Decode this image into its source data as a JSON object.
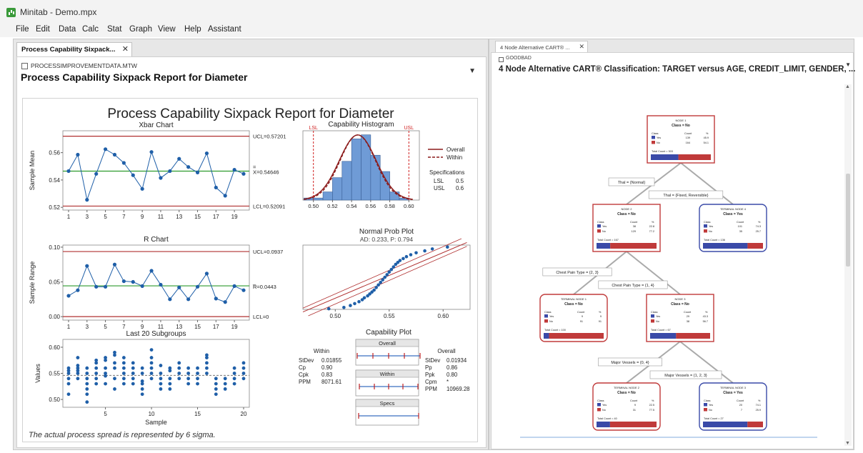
{
  "app": {
    "title": "Minitab - Demo.mpx"
  },
  "menu": [
    "File",
    "Edit",
    "Data",
    "Calc",
    "Stat",
    "Graph",
    "View",
    "Help",
    "Assistant"
  ],
  "left": {
    "tab_label": "Process Capability Sixpack...",
    "close_glyph": "✕",
    "worksheet": "PROCESSIMPROVEMENTDATA.MTW",
    "report_title": "Process Capability Sixpack Report for Diameter",
    "dropdown_glyph": "▼",
    "report": {
      "main_title": "Process Capability Sixpack Report for Diameter",
      "footer": "The actual process spread is represented by 6 sigma.",
      "xbar": {
        "title": "Xbar Chart",
        "ylabel": "Sample Mean",
        "ucl_label": "UCL=0.57201",
        "center_label": "X=0.54646",
        "center_bar": "=",
        "lcl_label": "LCL=0.52091",
        "yticks": [
          "0.56",
          "0.54",
          "0.52"
        ],
        "xticks": [
          "1",
          "3",
          "5",
          "7",
          "9",
          "11",
          "13",
          "15",
          "17",
          "19"
        ]
      },
      "rchart": {
        "title": "R Chart",
        "ylabel": "Sample Range",
        "ucl_label": "UCL=0.0937",
        "center_label": "R=0.0443",
        "center_bar": "_",
        "lcl_label": "LCL=0",
        "yticks": [
          "0.10",
          "0.05",
          "0.00"
        ],
        "xticks": [
          "1",
          "3",
          "5",
          "7",
          "9",
          "11",
          "13",
          "15",
          "17",
          "19"
        ]
      },
      "last20": {
        "title": "Last 20 Subgroups",
        "ylabel": "Values",
        "xlabel": "Sample",
        "yticks": [
          "0.60",
          "0.55",
          "0.50"
        ],
        "xticks": [
          "5",
          "10",
          "15",
          "20"
        ]
      },
      "hist": {
        "title": "Capability Histogram",
        "lsl_tag": "LSL",
        "usl_tag": "USL",
        "xticks": [
          "0.50",
          "0.52",
          "0.54",
          "0.56",
          "0.58",
          "0.60"
        ],
        "legend": [
          "Overall",
          "Within"
        ],
        "spec_title": "Specifications",
        "spec_rows": [
          [
            "LSL",
            "0.5"
          ],
          [
            "USL",
            "0.6"
          ]
        ]
      },
      "probplot": {
        "title": "Normal Prob Plot",
        "subtitle": "AD: 0.233, P: 0.794",
        "xticks": [
          "0.50",
          "0.55",
          "0.60"
        ]
      },
      "capplot": {
        "title": "Capability Plot",
        "bars": [
          "Overall",
          "Within",
          "Specs"
        ],
        "within_title": "Within",
        "within_rows": [
          [
            "StDev",
            "0.01855"
          ],
          [
            "Cp",
            "0.90"
          ],
          [
            "Cpk",
            "0.83"
          ],
          [
            "PPM",
            "8071.61"
          ]
        ],
        "overall_title": "Overall",
        "overall_rows": [
          [
            "StDev",
            "0.01934"
          ],
          [
            "Pp",
            "0.86"
          ],
          [
            "Ppk",
            "0.80"
          ],
          [
            "Cpm",
            "*"
          ],
          [
            "PPM",
            "10969.28"
          ]
        ]
      }
    }
  },
  "right": {
    "tab_label": "4 Node Alternative CART® ...",
    "close_glyph": "✕",
    "worksheet": "GOODBAD",
    "report_title": "4 Node Alternative CART® Classification: TARGET versus AGE, CREDIT_LIMIT, GENDER, ...",
    "dropdown_glyph": "▼",
    "tree": {
      "nodes": [
        {
          "id": "n1",
          "title": "NODE 1",
          "cls": "Class = No",
          "yes": [
            "Yes",
            "139",
            "45.9"
          ],
          "no": [
            "No",
            "164",
            "54.1"
          ],
          "total": "Total Count = 303",
          "terminal": false
        },
        {
          "id": "n2",
          "title": "NODE 2",
          "cls": "Class = No",
          "yes": [
            "Yes",
            "38",
            "22.8"
          ],
          "no": [
            "No",
            "129",
            "77.2"
          ],
          "total": "Total Count = 167",
          "terminal": false
        },
        {
          "id": "t4",
          "title": "TERMINAL NODE 4",
          "cls": "Class = Yes",
          "yes": [
            "Yes",
            "101",
            "74.3"
          ],
          "no": [
            "No",
            "35",
            "25.7"
          ],
          "total": "Total Count = 136",
          "terminal": true
        },
        {
          "id": "t1",
          "title": "TERMINAL NODE 1",
          "cls": "Class = No",
          "yes": [
            "Yes",
            "9",
            "9"
          ],
          "no": [
            "No",
            "91",
            "91"
          ],
          "total": "Total Count = 100",
          "terminal": true
        },
        {
          "id": "n3",
          "title": "NODE 3",
          "cls": "Class = No",
          "yes": [
            "Yes",
            "29",
            "43.3"
          ],
          "no": [
            "No",
            "38",
            "56.7"
          ],
          "total": "Total Count = 67",
          "terminal": false
        },
        {
          "id": "t2",
          "title": "TERMINAL NODE 2",
          "cls": "Class = No",
          "yes": [
            "Yes",
            "9",
            "22.5"
          ],
          "no": [
            "No",
            "31",
            "77.5"
          ],
          "total": "Total Count = 40",
          "terminal": true
        },
        {
          "id": "t3",
          "title": "TERMINAL NODE 3",
          "cls": "Class = Yes",
          "yes": [
            "Yes",
            "20",
            "74.1"
          ],
          "no": [
            "No",
            "7",
            "25.9"
          ],
          "total": "Total Count = 27",
          "terminal": true
        }
      ],
      "header": [
        "Class",
        "Count",
        "%"
      ],
      "splits": [
        "Thal = {Normal}",
        "Thal = {Fixed, Reversible}",
        "Chest Pain Type = {2, 3}",
        "Chest Pain Type = {1, 4}",
        "Major Vessels = {0, 4}",
        "Major Vessels = {1, 2, 3}"
      ]
    }
  },
  "chart_data": [
    {
      "type": "line",
      "title": "Xbar Chart",
      "ylabel": "Sample Mean",
      "x": [
        1,
        2,
        3,
        4,
        5,
        6,
        7,
        8,
        9,
        10,
        11,
        12,
        13,
        14,
        15,
        16,
        17,
        18,
        19,
        20
      ],
      "series": [
        {
          "values": [
            0.5465,
            0.5585,
            0.5255,
            0.5445,
            0.5625,
            0.5585,
            0.5525,
            0.5435,
            0.5335,
            0.5605,
            0.5415,
            0.5465,
            0.5555,
            0.5495,
            0.5455,
            0.5595,
            0.5345,
            0.5285,
            0.5475,
            0.5445
          ]
        }
      ],
      "ucl": 0.57201,
      "center": 0.54646,
      "lcl": 0.52091,
      "ylim": [
        0.518,
        0.576
      ]
    },
    {
      "type": "line",
      "title": "R Chart",
      "ylabel": "Sample Range",
      "x": [
        1,
        2,
        3,
        4,
        5,
        6,
        7,
        8,
        9,
        10,
        11,
        12,
        13,
        14,
        15,
        16,
        17,
        18,
        19,
        20
      ],
      "series": [
        {
          "values": [
            0.03,
            0.038,
            0.073,
            0.043,
            0.043,
            0.075,
            0.051,
            0.05,
            0.044,
            0.066,
            0.046,
            0.025,
            0.042,
            0.025,
            0.043,
            0.062,
            0.026,
            0.021,
            0.044,
            0.038
          ]
        }
      ],
      "ucl": 0.0937,
      "center": 0.0443,
      "lcl": 0,
      "ylim": [
        -0.005,
        0.103
      ]
    },
    {
      "type": "scatter",
      "title": "Last 20 Subgroups",
      "xlabel": "Sample",
      "ylabel": "Values",
      "center": 0.546,
      "ylim": [
        0.485,
        0.615
      ],
      "points": [
        [
          1,
          0.51
        ],
        [
          1,
          0.53
        ],
        [
          1,
          0.54
        ],
        [
          1,
          0.55
        ],
        [
          1,
          0.555
        ],
        [
          1,
          0.56
        ],
        [
          2,
          0.54
        ],
        [
          2,
          0.55
        ],
        [
          2,
          0.555
        ],
        [
          2,
          0.56
        ],
        [
          2,
          0.565
        ],
        [
          2,
          0.58
        ],
        [
          3,
          0.495
        ],
        [
          3,
          0.51
        ],
        [
          3,
          0.52
        ],
        [
          3,
          0.53
        ],
        [
          3,
          0.54
        ],
        [
          3,
          0.55
        ],
        [
          3,
          0.56
        ],
        [
          4,
          0.53
        ],
        [
          4,
          0.54
        ],
        [
          4,
          0.55
        ],
        [
          4,
          0.56
        ],
        [
          4,
          0.57
        ],
        [
          4,
          0.575
        ],
        [
          5,
          0.53
        ],
        [
          5,
          0.545
        ],
        [
          5,
          0.55
        ],
        [
          5,
          0.56
        ],
        [
          5,
          0.575
        ],
        [
          5,
          0.58
        ],
        [
          6,
          0.52
        ],
        [
          6,
          0.54
        ],
        [
          6,
          0.56
        ],
        [
          6,
          0.57
        ],
        [
          6,
          0.585
        ],
        [
          6,
          0.59
        ],
        [
          7,
          0.53
        ],
        [
          7,
          0.54
        ],
        [
          7,
          0.55
        ],
        [
          7,
          0.56
        ],
        [
          7,
          0.57
        ],
        [
          7,
          0.58
        ],
        [
          8,
          0.53
        ],
        [
          8,
          0.54
        ],
        [
          8,
          0.55
        ],
        [
          8,
          0.56
        ],
        [
          8,
          0.57
        ],
        [
          9,
          0.51
        ],
        [
          9,
          0.52
        ],
        [
          9,
          0.53
        ],
        [
          9,
          0.535
        ],
        [
          9,
          0.55
        ],
        [
          9,
          0.56
        ],
        [
          10,
          0.54
        ],
        [
          10,
          0.55
        ],
        [
          10,
          0.56
        ],
        [
          10,
          0.57
        ],
        [
          10,
          0.58
        ],
        [
          10,
          0.595
        ],
        [
          11,
          0.52
        ],
        [
          11,
          0.53
        ],
        [
          11,
          0.54
        ],
        [
          11,
          0.55
        ],
        [
          11,
          0.565
        ],
        [
          12,
          0.52
        ],
        [
          12,
          0.53
        ],
        [
          12,
          0.54
        ],
        [
          12,
          0.555
        ],
        [
          12,
          0.56
        ],
        [
          13,
          0.54
        ],
        [
          13,
          0.55
        ],
        [
          13,
          0.56
        ],
        [
          13,
          0.57
        ],
        [
          14,
          0.53
        ],
        [
          14,
          0.54
        ],
        [
          14,
          0.55
        ],
        [
          14,
          0.56
        ],
        [
          15,
          0.53
        ],
        [
          15,
          0.54
        ],
        [
          15,
          0.55
        ],
        [
          15,
          0.56
        ],
        [
          16,
          0.55
        ],
        [
          16,
          0.56
        ],
        [
          16,
          0.57
        ],
        [
          16,
          0.58
        ],
        [
          16,
          0.585
        ],
        [
          17,
          0.51
        ],
        [
          17,
          0.52
        ],
        [
          17,
          0.53
        ],
        [
          17,
          0.54
        ],
        [
          18,
          0.52
        ],
        [
          18,
          0.53
        ],
        [
          18,
          0.54
        ],
        [
          19,
          0.53
        ],
        [
          19,
          0.54
        ],
        [
          19,
          0.55
        ],
        [
          19,
          0.56
        ],
        [
          20,
          0.54
        ],
        [
          20,
          0.55
        ],
        [
          20,
          0.56
        ],
        [
          20,
          0.57
        ]
      ]
    },
    {
      "type": "bar",
      "title": "Capability Histogram",
      "bin_edges": [
        0.49,
        0.5,
        0.51,
        0.52,
        0.53,
        0.54,
        0.55,
        0.56,
        0.57,
        0.58,
        0.59,
        0.6
      ],
      "values": [
        1,
        1,
        4,
        11,
        19,
        30,
        32,
        22,
        14,
        4,
        1
      ],
      "lsl": 0.5,
      "usl": 0.6,
      "xlim": [
        0.489,
        0.611
      ]
    },
    {
      "type": "scatter",
      "title": "Normal Prob Plot",
      "subtitle": "AD: 0.233, P: 0.794",
      "xlim": [
        0.47,
        0.625
      ],
      "x": [
        0.494,
        0.508,
        0.514,
        0.518,
        0.522,
        0.525,
        0.527,
        0.53,
        0.532,
        0.534,
        0.536,
        0.538,
        0.54,
        0.542,
        0.544,
        0.546,
        0.548,
        0.55,
        0.552,
        0.554,
        0.556,
        0.558,
        0.56,
        0.563,
        0.566,
        0.57,
        0.575,
        0.583,
        0.59,
        0.604
      ],
      "y": [
        0.01,
        0.03,
        0.06,
        0.09,
        0.12,
        0.15,
        0.18,
        0.21,
        0.24,
        0.27,
        0.3,
        0.34,
        0.38,
        0.42,
        0.46,
        0.5,
        0.54,
        0.58,
        0.62,
        0.66,
        0.7,
        0.73,
        0.76,
        0.79,
        0.82,
        0.85,
        0.88,
        0.91,
        0.94,
        0.97
      ]
    }
  ]
}
